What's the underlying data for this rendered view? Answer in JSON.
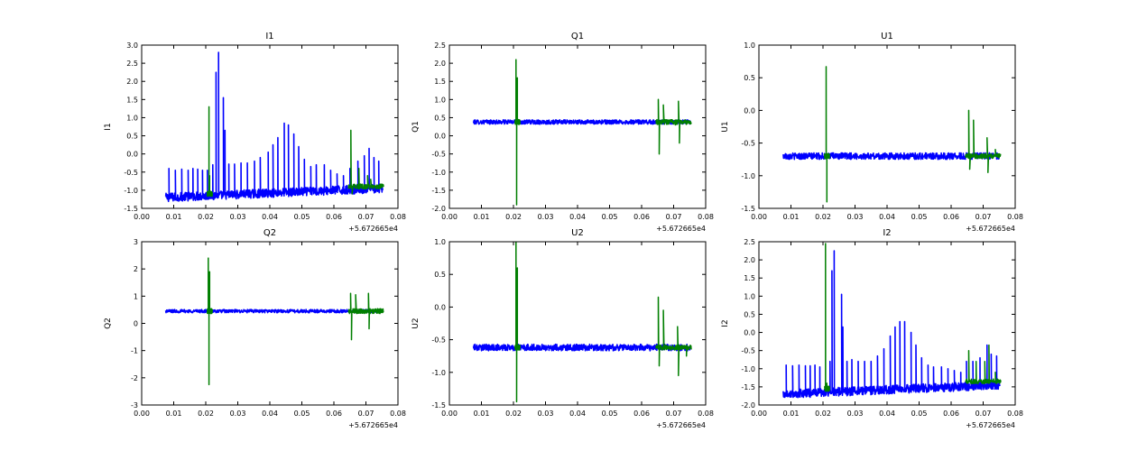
{
  "colors": {
    "series_blue": "#0000ff",
    "series_green": "#007f00",
    "axes": "#000000",
    "background": "#ffffff"
  },
  "chart_data": [
    {
      "type": "line",
      "title": "I1",
      "ylabel": "I1",
      "xlabel": "",
      "xlim": [
        0.0,
        0.08
      ],
      "ylim": [
        -1.5,
        3.0
      ],
      "xticks": [
        "0.00",
        "0.01",
        "0.02",
        "0.03",
        "0.04",
        "0.05",
        "0.06",
        "0.07",
        "0.08"
      ],
      "yticks": [
        "-1.5",
        "-1.0",
        "-0.5",
        "0.0",
        "0.5",
        "1.0",
        "1.5",
        "2.0",
        "2.5",
        "3.0"
      ],
      "offset_text": "+5.672665e4",
      "grid": false,
      "series": [
        {
          "color": "blue",
          "x_range": [
            0.0075,
            0.0752
          ],
          "baseline_start": -1.2,
          "baseline_end": -0.95,
          "noise": 0.12,
          "spikes": [
            [
              0.0085,
              -0.4
            ],
            [
              0.0105,
              -0.45
            ],
            [
              0.0125,
              -0.42
            ],
            [
              0.0145,
              -0.45
            ],
            [
              0.016,
              -0.4
            ],
            [
              0.0175,
              -0.42
            ],
            [
              0.019,
              -0.45
            ],
            [
              0.0205,
              -0.45
            ],
            [
              0.0222,
              -0.3
            ],
            [
              0.0232,
              2.25
            ],
            [
              0.024,
              2.8
            ],
            [
              0.0255,
              1.55
            ],
            [
              0.026,
              0.65
            ],
            [
              0.0272,
              -0.28
            ],
            [
              0.029,
              -0.28
            ],
            [
              0.031,
              -0.25
            ],
            [
              0.033,
              -0.25
            ],
            [
              0.0352,
              -0.2
            ],
            [
              0.037,
              -0.1
            ],
            [
              0.0395,
              0.05
            ],
            [
              0.041,
              0.25
            ],
            [
              0.0425,
              0.45
            ],
            [
              0.0445,
              0.85
            ],
            [
              0.0458,
              0.8
            ],
            [
              0.0475,
              0.55
            ],
            [
              0.049,
              0.2
            ],
            [
              0.0508,
              -0.15
            ],
            [
              0.0528,
              -0.35
            ],
            [
              0.0545,
              -0.3
            ],
            [
              0.057,
              -0.3
            ],
            [
              0.059,
              -0.45
            ],
            [
              0.061,
              -0.55
            ],
            [
              0.063,
              -0.6
            ],
            [
              0.065,
              -0.4
            ],
            [
              0.0675,
              -0.2
            ],
            [
              0.0695,
              -0.05
            ],
            [
              0.071,
              0.15
            ],
            [
              0.0725,
              -0.1
            ],
            [
              0.074,
              -0.2
            ]
          ]
        },
        {
          "color": "green",
          "x_range": [
            0.0205,
            0.0755
          ],
          "segments": [
            [
              0.0205,
              0.022,
              -1.1,
              [
                [
                  0.021,
                  1.3
                ],
                [
                  0.0212,
                  -0.6
                ]
              ]
            ],
            [
              0.0645,
              0.0755,
              -0.9,
              [
                [
                  0.0653,
                  0.65
                ],
                [
                  0.0657,
                  -1.1
                ],
                [
                  0.0678,
                  -0.4
                ],
                [
                  0.0705,
                  -0.6
                ],
                [
                  0.0715,
                  -0.7
                ]
              ]
            ]
          ]
        }
      ]
    },
    {
      "type": "line",
      "title": "Q1",
      "ylabel": "Q1",
      "xlabel": "",
      "xlim": [
        0.0,
        0.08
      ],
      "ylim": [
        -2.0,
        2.5
      ],
      "xticks": [
        "0.00",
        "0.01",
        "0.02",
        "0.03",
        "0.04",
        "0.05",
        "0.06",
        "0.07",
        "0.08"
      ],
      "yticks": [
        "-2.0",
        "-1.5",
        "-1.0",
        "-0.5",
        "0.0",
        "0.5",
        "1.0",
        "1.5",
        "2.0",
        "2.5"
      ],
      "offset_text": "+5.672665e4",
      "grid": false,
      "series": [
        {
          "color": "blue",
          "x_range": [
            0.0075,
            0.0752
          ],
          "baseline_start": 0.38,
          "baseline_end": 0.38,
          "noise": 0.06,
          "spikes": []
        },
        {
          "color": "green",
          "x_range": [
            0.0205,
            0.0755
          ],
          "segments": [
            [
              0.0205,
              0.022,
              0.38,
              [
                [
                  0.0208,
                  2.1
                ],
                [
                  0.021,
                  -1.9
                ],
                [
                  0.0212,
                  1.6
                ]
              ]
            ],
            [
              0.0645,
              0.0755,
              0.38,
              [
                [
                  0.0652,
                  1.0
                ],
                [
                  0.0655,
                  -0.5
                ],
                [
                  0.0668,
                  0.85
                ],
                [
                  0.0705,
                  0.3
                ],
                [
                  0.0715,
                  0.95
                ],
                [
                  0.0718,
                  -0.2
                ]
              ]
            ]
          ]
        }
      ]
    },
    {
      "type": "line",
      "title": "U1",
      "ylabel": "U1",
      "xlabel": "",
      "xlim": [
        0.0,
        0.08
      ],
      "ylim": [
        -1.5,
        1.0
      ],
      "xticks": [
        "0.00",
        "0.01",
        "0.02",
        "0.03",
        "0.04",
        "0.05",
        "0.06",
        "0.07",
        "0.08"
      ],
      "yticks": [
        "-1.5",
        "-1.0",
        "-0.5",
        "0.0",
        "0.5",
        "1.0"
      ],
      "offset_text": "+5.672665e4",
      "grid": false,
      "series": [
        {
          "color": "blue",
          "x_range": [
            0.0075,
            0.0752
          ],
          "baseline_start": -0.7,
          "baseline_end": -0.7,
          "noise": 0.05,
          "spikes": []
        },
        {
          "color": "green",
          "x_range": [
            0.0205,
            0.0755
          ],
          "segments": [
            [
              0.0205,
              0.022,
              -0.7,
              [
                [
                  0.021,
                  0.67
                ],
                [
                  0.0212,
                  -1.4
                ]
              ]
            ],
            [
              0.0645,
              0.0755,
              -0.7,
              [
                [
                  0.0655,
                  -0.0
                ],
                [
                  0.0658,
                  -0.9
                ],
                [
                  0.067,
                  -0.15
                ],
                [
                  0.0712,
                  -0.42
                ],
                [
                  0.0715,
                  -0.95
                ],
                [
                  0.0738,
                  -0.6
                ]
              ]
            ]
          ]
        }
      ]
    },
    {
      "type": "line",
      "title": "Q2",
      "ylabel": "Q2",
      "xlabel": "",
      "xlim": [
        0.0,
        0.08
      ],
      "ylim": [
        -3,
        3
      ],
      "xticks": [
        "0.00",
        "0.01",
        "0.02",
        "0.03",
        "0.04",
        "0.05",
        "0.06",
        "0.07",
        "0.08"
      ],
      "yticks": [
        "-3",
        "-2",
        "-1",
        "0",
        "1",
        "2",
        "3"
      ],
      "offset_text": "+5.672665e4",
      "grid": false,
      "series": [
        {
          "color": "blue",
          "x_range": [
            0.0075,
            0.0752
          ],
          "baseline_start": 0.45,
          "baseline_end": 0.45,
          "noise": 0.06,
          "spikes": []
        },
        {
          "color": "green",
          "x_range": [
            0.0205,
            0.0755
          ],
          "segments": [
            [
              0.0205,
              0.022,
              0.45,
              [
                [
                  0.0208,
                  2.4
                ],
                [
                  0.021,
                  -2.25
                ],
                [
                  0.0212,
                  1.9
                ]
              ]
            ],
            [
              0.0645,
              0.0755,
              0.45,
              [
                [
                  0.0652,
                  1.1
                ],
                [
                  0.0655,
                  -0.6
                ],
                [
                  0.0668,
                  1.05
                ],
                [
                  0.0708,
                  1.1
                ],
                [
                  0.071,
                  -0.2
                ]
              ]
            ]
          ]
        }
      ]
    },
    {
      "type": "line",
      "title": "U2",
      "ylabel": "U2",
      "xlabel": "",
      "xlim": [
        0.0,
        0.08
      ],
      "ylim": [
        -1.5,
        1.0
      ],
      "xticks": [
        "0.00",
        "0.01",
        "0.02",
        "0.03",
        "0.04",
        "0.05",
        "0.06",
        "0.07",
        "0.08"
      ],
      "yticks": [
        "-1.5",
        "-1.0",
        "-0.5",
        "0.0",
        "0.5",
        "1.0"
      ],
      "offset_text": "+5.672665e4",
      "grid": false,
      "series": [
        {
          "color": "blue",
          "x_range": [
            0.0075,
            0.0752
          ],
          "baseline_start": -0.62,
          "baseline_end": -0.62,
          "noise": 0.05,
          "spikes": []
        },
        {
          "color": "green",
          "x_range": [
            0.0205,
            0.0755
          ],
          "segments": [
            [
              0.0205,
              0.022,
              -0.62,
              [
                [
                  0.0208,
                  1.0
                ],
                [
                  0.021,
                  -1.45
                ],
                [
                  0.0212,
                  0.6
                ]
              ]
            ],
            [
              0.0645,
              0.0755,
              -0.62,
              [
                [
                  0.0652,
                  0.15
                ],
                [
                  0.0655,
                  -0.9
                ],
                [
                  0.0668,
                  -0.05
                ],
                [
                  0.0712,
                  -0.3
                ],
                [
                  0.0715,
                  -1.05
                ],
                [
                  0.074,
                  -0.75
                ]
              ]
            ]
          ]
        }
      ]
    },
    {
      "type": "line",
      "title": "I2",
      "ylabel": "I2",
      "xlabel": "",
      "xlim": [
        0.0,
        0.08
      ],
      "ylim": [
        -2.0,
        2.5
      ],
      "xticks": [
        "0.00",
        "0.01",
        "0.02",
        "0.03",
        "0.04",
        "0.05",
        "0.06",
        "0.07",
        "0.08"
      ],
      "yticks": [
        "-2.0",
        "-1.5",
        "-1.0",
        "-0.5",
        "0.0",
        "0.5",
        "1.0",
        "1.5",
        "2.0",
        "2.5"
      ],
      "offset_text": "+5.672665e4",
      "grid": false,
      "series": [
        {
          "color": "blue",
          "x_range": [
            0.0075,
            0.0752
          ],
          "baseline_start": -1.7,
          "baseline_end": -1.45,
          "noise": 0.12,
          "spikes": [
            [
              0.0085,
              -0.9
            ],
            [
              0.0105,
              -0.92
            ],
            [
              0.0125,
              -0.9
            ],
            [
              0.0145,
              -0.92
            ],
            [
              0.016,
              -0.92
            ],
            [
              0.0175,
              -0.9
            ],
            [
              0.019,
              -0.95
            ],
            [
              0.0222,
              -0.8
            ],
            [
              0.0228,
              1.7
            ],
            [
              0.0235,
              2.25
            ],
            [
              0.0258,
              1.05
            ],
            [
              0.0262,
              0.15
            ],
            [
              0.0275,
              -0.8
            ],
            [
              0.029,
              -0.75
            ],
            [
              0.031,
              -0.8
            ],
            [
              0.033,
              -0.8
            ],
            [
              0.035,
              -0.8
            ],
            [
              0.037,
              -0.65
            ],
            [
              0.039,
              -0.45
            ],
            [
              0.041,
              -0.1
            ],
            [
              0.0425,
              0.15
            ],
            [
              0.044,
              0.3
            ],
            [
              0.0455,
              0.3
            ],
            [
              0.0475,
              0.0
            ],
            [
              0.049,
              -0.35
            ],
            [
              0.0508,
              -0.7
            ],
            [
              0.0528,
              -0.9
            ],
            [
              0.0545,
              -0.95
            ],
            [
              0.057,
              -0.95
            ],
            [
              0.059,
              -1.0
            ],
            [
              0.061,
              -1.05
            ],
            [
              0.063,
              -1.1
            ],
            [
              0.0648,
              -0.8
            ],
            [
              0.0668,
              -0.8
            ],
            [
              0.069,
              -0.7
            ],
            [
              0.0712,
              -0.35
            ],
            [
              0.0725,
              -0.6
            ],
            [
              0.0742,
              -0.65
            ]
          ]
        },
        {
          "color": "green",
          "x_range": [
            0.0205,
            0.0755
          ],
          "segments": [
            [
              0.0205,
              0.022,
              -1.55,
              [
                [
                  0.0208,
                  2.45
                ],
                [
                  0.0212,
                  -1.4
                ]
              ]
            ],
            [
              0.0645,
              0.0755,
              -1.35,
              [
                [
                  0.0655,
                  -0.5
                ],
                [
                  0.0678,
                  -0.8
                ],
                [
                  0.0705,
                  -0.8
                ],
                [
                  0.0718,
                  -0.35
                ],
                [
                  0.0738,
                  -1.1
                ]
              ]
            ]
          ]
        }
      ]
    }
  ]
}
